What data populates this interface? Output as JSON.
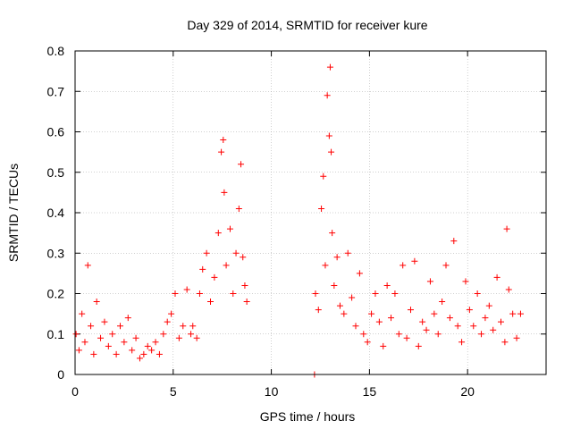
{
  "chart_data": {
    "type": "scatter",
    "title": "Day 329 of 2014, SRMTID for receiver kure",
    "xlabel": "GPS time / hours",
    "ylabel": "SRMTID / TECUs",
    "xlim": [
      0,
      24
    ],
    "ylim": [
      0,
      0.8
    ],
    "xticks": [
      0,
      5,
      10,
      15,
      20
    ],
    "xtick_labels": [
      "0",
      "5",
      "10",
      "15",
      "20"
    ],
    "yticks": [
      0,
      0.1,
      0.2,
      0.3,
      0.4,
      0.5,
      0.6,
      0.7,
      0.8
    ],
    "ytick_labels": [
      "0",
      "0.1",
      "0.2",
      "0.3",
      "0.4",
      "0.5",
      "0.6",
      "0.7",
      "0.8"
    ],
    "grid": true,
    "marker": "+",
    "color": "#ff0000",
    "series": [
      {
        "name": "kure",
        "x": [
          0.05,
          0.2,
          0.35,
          0.5,
          0.65,
          0.8,
          0.95,
          1.1,
          1.3,
          1.5,
          1.7,
          1.9,
          2.1,
          2.3,
          2.5,
          2.7,
          2.9,
          3.1,
          3.3,
          3.5,
          3.7,
          3.9,
          4.1,
          4.3,
          4.5,
          4.7,
          4.9,
          5.1,
          5.3,
          5.5,
          5.7,
          5.9,
          6.0,
          6.2,
          6.35,
          6.5,
          6.7,
          6.9,
          7.1,
          7.3,
          7.45,
          7.55,
          7.6,
          7.7,
          7.9,
          8.05,
          8.2,
          8.35,
          8.45,
          8.55,
          8.65,
          8.75,
          12.2,
          12.25,
          12.4,
          12.55,
          12.65,
          12.75,
          12.85,
          12.95,
          13.0,
          13.05,
          13.1,
          13.2,
          13.35,
          13.5,
          13.7,
          13.9,
          14.1,
          14.3,
          14.5,
          14.7,
          14.9,
          15.1,
          15.3,
          15.5,
          15.7,
          15.9,
          16.1,
          16.3,
          16.5,
          16.7,
          16.9,
          17.1,
          17.3,
          17.5,
          17.7,
          17.9,
          18.1,
          18.3,
          18.5,
          18.7,
          18.9,
          19.1,
          19.3,
          19.5,
          19.7,
          19.9,
          20.1,
          20.3,
          20.5,
          20.7,
          20.9,
          21.1,
          21.3,
          21.5,
          21.7,
          21.9,
          22.0,
          22.1,
          22.3,
          22.5,
          22.7
        ],
        "y": [
          0.1,
          0.06,
          0.15,
          0.08,
          0.27,
          0.12,
          0.05,
          0.18,
          0.09,
          0.13,
          0.07,
          0.1,
          0.05,
          0.12,
          0.08,
          0.14,
          0.06,
          0.09,
          0.04,
          0.05,
          0.07,
          0.06,
          0.08,
          0.05,
          0.1,
          0.13,
          0.15,
          0.2,
          0.09,
          0.12,
          0.21,
          0.1,
          0.12,
          0.09,
          0.2,
          0.26,
          0.3,
          0.18,
          0.24,
          0.35,
          0.55,
          0.58,
          0.45,
          0.27,
          0.36,
          0.2,
          0.3,
          0.41,
          0.52,
          0.29,
          0.22,
          0.18,
          0.0,
          0.2,
          0.16,
          0.41,
          0.49,
          0.27,
          0.69,
          0.59,
          0.76,
          0.55,
          0.35,
          0.22,
          0.29,
          0.17,
          0.15,
          0.3,
          0.19,
          0.12,
          0.25,
          0.1,
          0.08,
          0.15,
          0.2,
          0.13,
          0.07,
          0.22,
          0.14,
          0.2,
          0.1,
          0.27,
          0.09,
          0.16,
          0.28,
          0.07,
          0.13,
          0.11,
          0.23,
          0.15,
          0.1,
          0.18,
          0.27,
          0.14,
          0.33,
          0.12,
          0.08,
          0.23,
          0.16,
          0.12,
          0.2,
          0.1,
          0.14,
          0.17,
          0.11,
          0.24,
          0.13,
          0.08,
          0.36,
          0.21,
          0.15,
          0.09,
          0.15
        ]
      }
    ]
  }
}
